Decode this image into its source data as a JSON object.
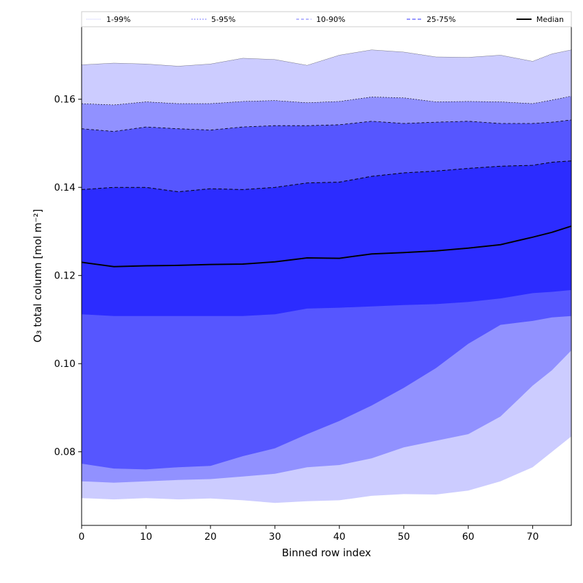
{
  "chart_data": {
    "type": "area",
    "title": "",
    "xlabel": "Binned row index",
    "ylabel": "O₃ total column [mol m⁻²]",
    "xlim": [
      0,
      76
    ],
    "ylim": [
      0.0633,
      0.1766
    ],
    "xticks": [
      0,
      10,
      20,
      30,
      40,
      50,
      60,
      70
    ],
    "yticks": [
      0.08,
      0.1,
      0.12,
      0.14,
      0.16
    ],
    "ytick_labels": [
      "0.08",
      "0.10",
      "0.12",
      "0.14",
      "0.16"
    ],
    "grid": false,
    "legend_position": "top",
    "colors": {
      "band_1_99": "#ccccff",
      "band_5_95": "#9191ff",
      "band_10_90": "#5656ff",
      "band_25_75": "#2c2cff",
      "median": "#000000"
    },
    "x": [
      0,
      5,
      10,
      15,
      20,
      25,
      30,
      35,
      40,
      45,
      50,
      55,
      60,
      65,
      70,
      73,
      76
    ],
    "series": [
      {
        "name": "1-99%",
        "lower": [
          0.0695,
          0.0692,
          0.0695,
          0.0692,
          0.0694,
          0.069,
          0.0684,
          0.0688,
          0.069,
          0.07,
          0.0704,
          0.0703,
          0.0712,
          0.0733,
          0.0765,
          0.08,
          0.0835
        ],
        "upper": [
          0.1678,
          0.1682,
          0.168,
          0.1675,
          0.168,
          0.1693,
          0.169,
          0.1677,
          0.17,
          0.1712,
          0.1707,
          0.1696,
          0.1695,
          0.17,
          0.1686,
          0.1703,
          0.1712
        ]
      },
      {
        "name": "5-95%",
        "lower": [
          0.0733,
          0.073,
          0.0733,
          0.0736,
          0.0738,
          0.0744,
          0.075,
          0.0765,
          0.077,
          0.0785,
          0.081,
          0.0825,
          0.084,
          0.088,
          0.095,
          0.0985,
          0.103
        ],
        "upper": [
          0.159,
          0.1587,
          0.1594,
          0.159,
          0.159,
          0.1595,
          0.1597,
          0.1592,
          0.1595,
          0.1605,
          0.1603,
          0.1594,
          0.1595,
          0.1594,
          0.159,
          0.1598,
          0.1607
        ]
      },
      {
        "name": "10-90%",
        "lower": [
          0.0773,
          0.0762,
          0.076,
          0.0765,
          0.0768,
          0.079,
          0.0808,
          0.084,
          0.087,
          0.0905,
          0.0945,
          0.099,
          0.1045,
          0.1088,
          0.1097,
          0.1105,
          0.1108
        ],
        "upper": [
          0.1533,
          0.1527,
          0.1537,
          0.1533,
          0.153,
          0.1537,
          0.154,
          0.154,
          0.1542,
          0.155,
          0.1545,
          0.1548,
          0.155,
          0.1545,
          0.1545,
          0.1548,
          0.1553
        ]
      },
      {
        "name": "25-75%",
        "lower": [
          0.1112,
          0.1108,
          0.1108,
          0.1108,
          0.1108,
          0.1108,
          0.1112,
          0.1125,
          0.1127,
          0.113,
          0.1133,
          0.1135,
          0.114,
          0.1148,
          0.116,
          0.1163,
          0.1167
        ],
        "upper": [
          0.1395,
          0.14,
          0.14,
          0.139,
          0.1397,
          0.1395,
          0.14,
          0.141,
          0.1412,
          0.1425,
          0.1433,
          0.1437,
          0.1443,
          0.1448,
          0.145,
          0.1457,
          0.146
        ]
      },
      {
        "name": "Median",
        "values": [
          0.123,
          0.122,
          0.1222,
          0.1223,
          0.1225,
          0.1226,
          0.1231,
          0.124,
          0.1239,
          0.1249,
          0.1252,
          0.1256,
          0.1262,
          0.127,
          0.1287,
          0.1298,
          0.1312
        ]
      }
    ]
  }
}
